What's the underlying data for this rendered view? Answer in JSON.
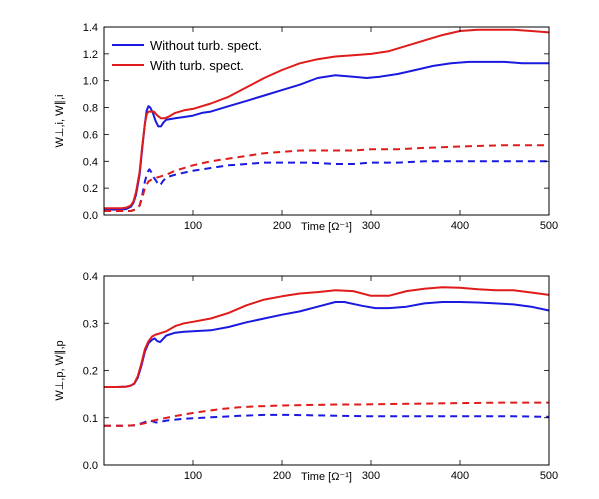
{
  "colors": {
    "blue": "#1a1adf",
    "red": "#e01b1b"
  },
  "legend": {
    "placement": "top-left",
    "items": [
      {
        "label": "Without turb. spect.",
        "color": "#1a1adf"
      },
      {
        "label": "With turb. spect.",
        "color": "#e01b1b"
      }
    ]
  },
  "chart_data": [
    {
      "type": "line",
      "xlabel": "Time [Ω⁻¹]",
      "ylabel": "W⊥,i, W∥,i",
      "xlim": [
        0,
        500
      ],
      "ylim": [
        0,
        1.4
      ],
      "x_ticks": [
        100,
        200,
        300,
        400,
        500
      ],
      "y_ticks": [
        0.0,
        0.2,
        0.4,
        0.6,
        0.8,
        1.0,
        1.2,
        1.4
      ],
      "grid": false,
      "series": [
        {
          "name": "Without turb. spect.",
          "color": "#1a1adf",
          "dash": "solid",
          "points": [
            [
              0,
              0.04
            ],
            [
              10,
              0.04
            ],
            [
              20,
              0.04
            ],
            [
              25,
              0.045
            ],
            [
              30,
              0.06
            ],
            [
              33,
              0.09
            ],
            [
              36,
              0.15
            ],
            [
              40,
              0.3
            ],
            [
              43,
              0.5
            ],
            [
              46,
              0.68
            ],
            [
              48,
              0.78
            ],
            [
              50,
              0.81
            ],
            [
              52,
              0.8
            ],
            [
              55,
              0.76
            ],
            [
              58,
              0.7
            ],
            [
              61,
              0.66
            ],
            [
              64,
              0.66
            ],
            [
              67,
              0.69
            ],
            [
              70,
              0.71
            ],
            [
              80,
              0.72
            ],
            [
              90,
              0.73
            ],
            [
              100,
              0.74
            ],
            [
              110,
              0.76
            ],
            [
              120,
              0.77
            ],
            [
              140,
              0.81
            ],
            [
              160,
              0.85
            ],
            [
              180,
              0.89
            ],
            [
              200,
              0.93
            ],
            [
              220,
              0.97
            ],
            [
              240,
              1.02
            ],
            [
              260,
              1.04
            ],
            [
              280,
              1.03
            ],
            [
              295,
              1.02
            ],
            [
              310,
              1.03
            ],
            [
              330,
              1.05
            ],
            [
              350,
              1.08
            ],
            [
              370,
              1.11
            ],
            [
              390,
              1.13
            ],
            [
              410,
              1.14
            ],
            [
              430,
              1.14
            ],
            [
              450,
              1.14
            ],
            [
              470,
              1.13
            ],
            [
              490,
              1.13
            ],
            [
              500,
              1.13
            ]
          ]
        },
        {
          "name": "With turb. spect.",
          "color": "#e01b1b",
          "dash": "solid",
          "points": [
            [
              0,
              0.05
            ],
            [
              10,
              0.05
            ],
            [
              20,
              0.05
            ],
            [
              25,
              0.055
            ],
            [
              30,
              0.07
            ],
            [
              33,
              0.1
            ],
            [
              36,
              0.17
            ],
            [
              40,
              0.32
            ],
            [
              43,
              0.52
            ],
            [
              46,
              0.68
            ],
            [
              48,
              0.75
            ],
            [
              50,
              0.77
            ],
            [
              52,
              0.77
            ],
            [
              56,
              0.77
            ],
            [
              60,
              0.74
            ],
            [
              64,
              0.72
            ],
            [
              68,
              0.72
            ],
            [
              72,
              0.73
            ],
            [
              80,
              0.76
            ],
            [
              90,
              0.78
            ],
            [
              100,
              0.79
            ],
            [
              120,
              0.83
            ],
            [
              140,
              0.88
            ],
            [
              160,
              0.95
            ],
            [
              180,
              1.02
            ],
            [
              200,
              1.08
            ],
            [
              220,
              1.13
            ],
            [
              240,
              1.16
            ],
            [
              260,
              1.18
            ],
            [
              280,
              1.19
            ],
            [
              300,
              1.2
            ],
            [
              320,
              1.22
            ],
            [
              340,
              1.26
            ],
            [
              360,
              1.3
            ],
            [
              380,
              1.34
            ],
            [
              400,
              1.37
            ],
            [
              420,
              1.38
            ],
            [
              440,
              1.38
            ],
            [
              460,
              1.38
            ],
            [
              480,
              1.37
            ],
            [
              500,
              1.36
            ]
          ]
        },
        {
          "name": "Without turb. spect.",
          "color": "#1a1adf",
          "dash": "dashed",
          "points": [
            [
              0,
              0.03
            ],
            [
              20,
              0.03
            ],
            [
              30,
              0.03
            ],
            [
              35,
              0.04
            ],
            [
              40,
              0.07
            ],
            [
              43,
              0.15
            ],
            [
              46,
              0.25
            ],
            [
              49,
              0.32
            ],
            [
              51,
              0.34
            ],
            [
              53,
              0.32
            ],
            [
              56,
              0.28
            ],
            [
              60,
              0.24
            ],
            [
              63,
              0.22
            ],
            [
              66,
              0.25
            ],
            [
              70,
              0.28
            ],
            [
              80,
              0.3
            ],
            [
              100,
              0.33
            ],
            [
              120,
              0.35
            ],
            [
              140,
              0.37
            ],
            [
              160,
              0.38
            ],
            [
              180,
              0.39
            ],
            [
              200,
              0.39
            ],
            [
              230,
              0.39
            ],
            [
              260,
              0.38
            ],
            [
              280,
              0.38
            ],
            [
              300,
              0.39
            ],
            [
              330,
              0.39
            ],
            [
              360,
              0.4
            ],
            [
              400,
              0.4
            ],
            [
              450,
              0.4
            ],
            [
              500,
              0.4
            ]
          ]
        },
        {
          "name": "With turb. spect.",
          "color": "#e01b1b",
          "dash": "dashed",
          "points": [
            [
              0,
              0.03
            ],
            [
              20,
              0.03
            ],
            [
              30,
              0.03
            ],
            [
              35,
              0.04
            ],
            [
              40,
              0.07
            ],
            [
              43,
              0.13
            ],
            [
              46,
              0.2
            ],
            [
              50,
              0.25
            ],
            [
              55,
              0.27
            ],
            [
              60,
              0.28
            ],
            [
              70,
              0.3
            ],
            [
              80,
              0.33
            ],
            [
              100,
              0.37
            ],
            [
              120,
              0.4
            ],
            [
              140,
              0.42
            ],
            [
              160,
              0.44
            ],
            [
              180,
              0.46
            ],
            [
              200,
              0.47
            ],
            [
              220,
              0.48
            ],
            [
              240,
              0.48
            ],
            [
              260,
              0.48
            ],
            [
              280,
              0.48
            ],
            [
              300,
              0.49
            ],
            [
              330,
              0.49
            ],
            [
              360,
              0.5
            ],
            [
              400,
              0.51
            ],
            [
              450,
              0.52
            ],
            [
              500,
              0.52
            ]
          ]
        }
      ]
    },
    {
      "type": "line",
      "xlabel": "Time [Ω⁻¹]",
      "ylabel": "W⊥,p, W∥,p",
      "xlim": [
        0,
        500
      ],
      "ylim": [
        0,
        0.4
      ],
      "x_ticks": [
        100,
        200,
        300,
        400,
        500
      ],
      "y_ticks": [
        0.0,
        0.1,
        0.2,
        0.3,
        0.4
      ],
      "grid": false,
      "series": [
        {
          "name": "Without turb. spect.",
          "color": "#1a1adf",
          "dash": "solid",
          "points": [
            [
              0,
              0.165
            ],
            [
              15,
              0.165
            ],
            [
              25,
              0.166
            ],
            [
              30,
              0.168
            ],
            [
              34,
              0.172
            ],
            [
              38,
              0.185
            ],
            [
              42,
              0.21
            ],
            [
              46,
              0.24
            ],
            [
              50,
              0.258
            ],
            [
              54,
              0.265
            ],
            [
              57,
              0.268
            ],
            [
              60,
              0.262
            ],
            [
              63,
              0.26
            ],
            [
              66,
              0.266
            ],
            [
              70,
              0.274
            ],
            [
              80,
              0.28
            ],
            [
              90,
              0.282
            ],
            [
              100,
              0.283
            ],
            [
              120,
              0.285
            ],
            [
              140,
              0.292
            ],
            [
              160,
              0.302
            ],
            [
              180,
              0.31
            ],
            [
              200,
              0.318
            ],
            [
              220,
              0.325
            ],
            [
              240,
              0.335
            ],
            [
              260,
              0.345
            ],
            [
              270,
              0.345
            ],
            [
              290,
              0.337
            ],
            [
              305,
              0.332
            ],
            [
              320,
              0.332
            ],
            [
              340,
              0.335
            ],
            [
              360,
              0.342
            ],
            [
              380,
              0.345
            ],
            [
              400,
              0.345
            ],
            [
              420,
              0.344
            ],
            [
              440,
              0.342
            ],
            [
              460,
              0.34
            ],
            [
              480,
              0.335
            ],
            [
              500,
              0.327
            ]
          ]
        },
        {
          "name": "With turb. spect.",
          "color": "#e01b1b",
          "dash": "solid",
          "points": [
            [
              0,
              0.165
            ],
            [
              15,
              0.165
            ],
            [
              25,
              0.166
            ],
            [
              30,
              0.168
            ],
            [
              34,
              0.173
            ],
            [
              38,
              0.188
            ],
            [
              42,
              0.215
            ],
            [
              46,
              0.245
            ],
            [
              50,
              0.262
            ],
            [
              54,
              0.272
            ],
            [
              58,
              0.276
            ],
            [
              62,
              0.278
            ],
            [
              70,
              0.283
            ],
            [
              80,
              0.294
            ],
            [
              90,
              0.3
            ],
            [
              100,
              0.303
            ],
            [
              120,
              0.31
            ],
            [
              140,
              0.322
            ],
            [
              160,
              0.338
            ],
            [
              180,
              0.35
            ],
            [
              200,
              0.357
            ],
            [
              220,
              0.363
            ],
            [
              240,
              0.366
            ],
            [
              260,
              0.37
            ],
            [
              280,
              0.368
            ],
            [
              300,
              0.358
            ],
            [
              320,
              0.358
            ],
            [
              340,
              0.368
            ],
            [
              360,
              0.373
            ],
            [
              380,
              0.376
            ],
            [
              400,
              0.375
            ],
            [
              420,
              0.372
            ],
            [
              440,
              0.37
            ],
            [
              460,
              0.37
            ],
            [
              480,
              0.365
            ],
            [
              500,
              0.36
            ]
          ]
        },
        {
          "name": "Without turb. spect.",
          "color": "#1a1adf",
          "dash": "dashed",
          "points": [
            [
              0,
              0.083
            ],
            [
              20,
              0.083
            ],
            [
              35,
              0.084
            ],
            [
              45,
              0.09
            ],
            [
              50,
              0.095
            ],
            [
              54,
              0.093
            ],
            [
              58,
              0.09
            ],
            [
              62,
              0.091
            ],
            [
              70,
              0.094
            ],
            [
              90,
              0.098
            ],
            [
              120,
              0.101
            ],
            [
              150,
              0.104
            ],
            [
              180,
              0.106
            ],
            [
              210,
              0.106
            ],
            [
              240,
              0.105
            ],
            [
              270,
              0.104
            ],
            [
              300,
              0.103
            ],
            [
              340,
              0.103
            ],
            [
              380,
              0.103
            ],
            [
              420,
              0.103
            ],
            [
              460,
              0.103
            ],
            [
              500,
              0.102
            ]
          ]
        },
        {
          "name": "With turb. spect.",
          "color": "#e01b1b",
          "dash": "dashed",
          "points": [
            [
              0,
              0.083
            ],
            [
              20,
              0.083
            ],
            [
              35,
              0.084
            ],
            [
              45,
              0.088
            ],
            [
              55,
              0.094
            ],
            [
              70,
              0.1
            ],
            [
              90,
              0.107
            ],
            [
              110,
              0.113
            ],
            [
              130,
              0.118
            ],
            [
              150,
              0.122
            ],
            [
              170,
              0.124
            ],
            [
              200,
              0.126
            ],
            [
              230,
              0.127
            ],
            [
              260,
              0.128
            ],
            [
              290,
              0.128
            ],
            [
              320,
              0.129
            ],
            [
              360,
              0.13
            ],
            [
              400,
              0.131
            ],
            [
              450,
              0.132
            ],
            [
              500,
              0.132
            ]
          ]
        }
      ]
    }
  ]
}
